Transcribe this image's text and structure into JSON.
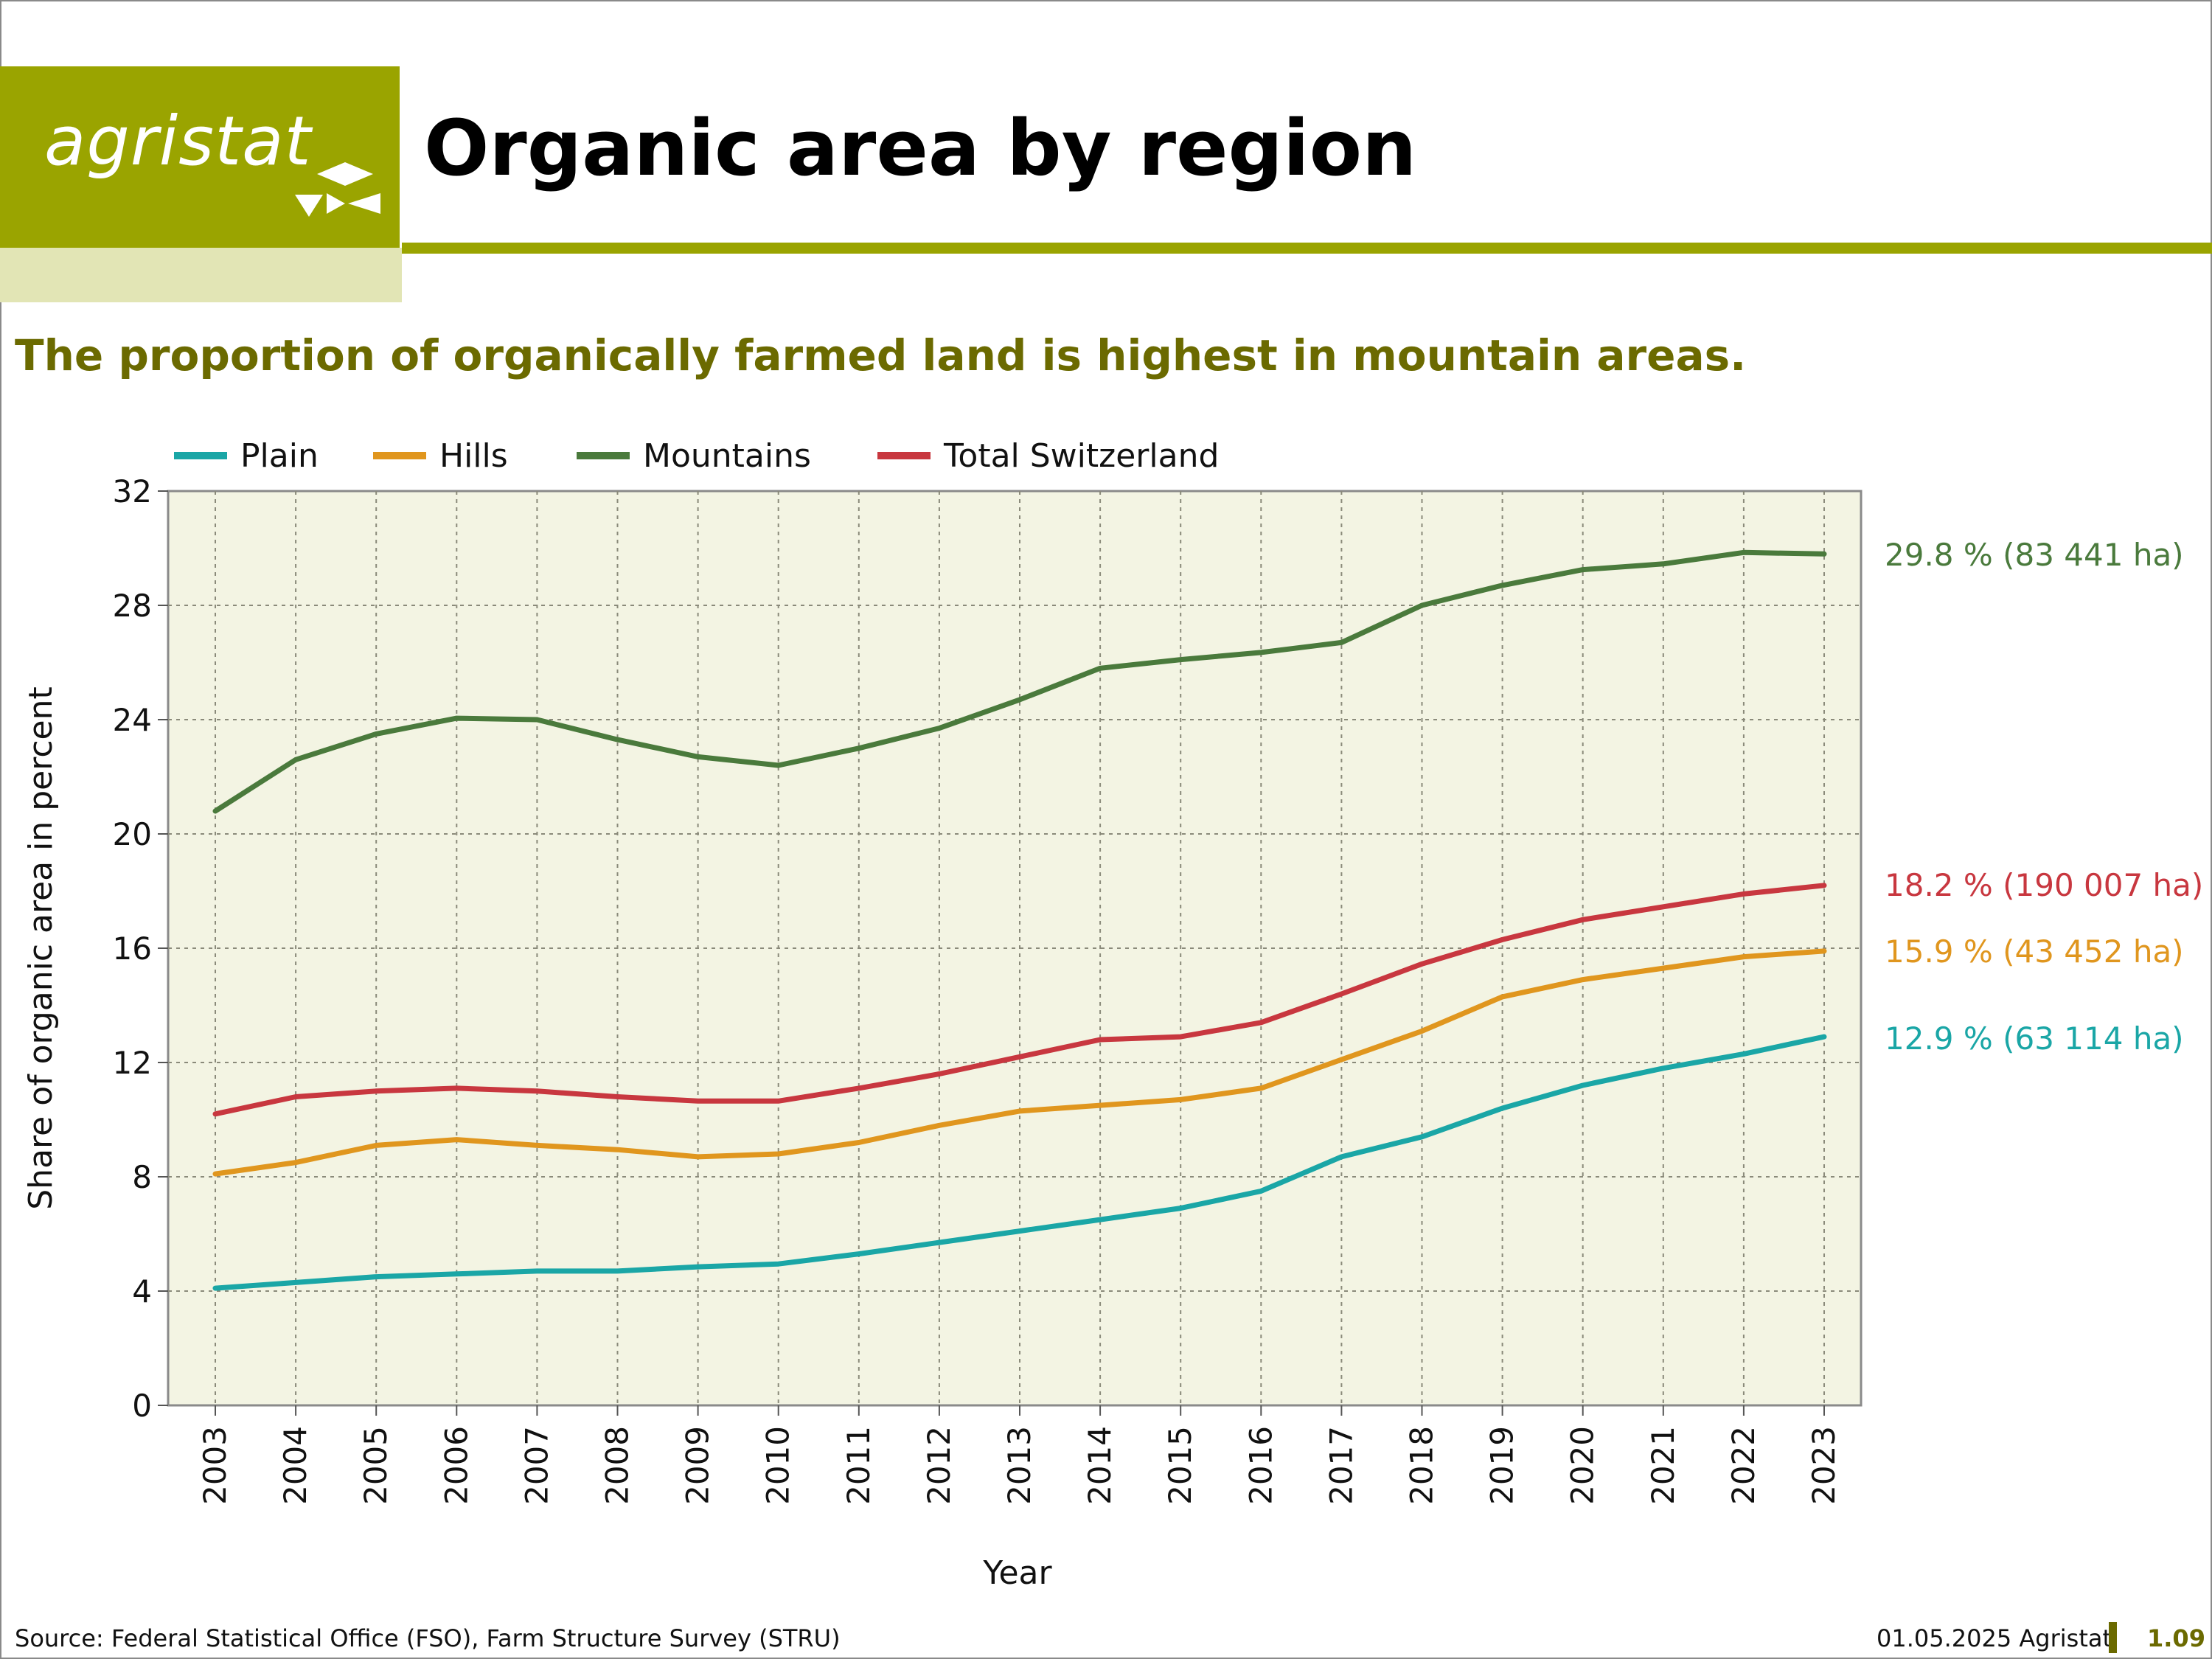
{
  "header": {
    "logo_text": "agristat",
    "title": "Organic area by region",
    "subtitle": "The proportion of organically farmed land is highest in mountain areas."
  },
  "chart_data": {
    "type": "line",
    "xlabel": "Year",
    "ylabel": "Share of organic area in percent",
    "ylim": [
      0,
      32
    ],
    "yticks": [
      0,
      4,
      8,
      12,
      16,
      20,
      24,
      28,
      32
    ],
    "grid": true,
    "legend_position": "top-left",
    "plot_background": "#f3f4e3",
    "x": [
      2003,
      2004,
      2005,
      2006,
      2007,
      2008,
      2009,
      2010,
      2011,
      2012,
      2013,
      2014,
      2015,
      2016,
      2017,
      2018,
      2019,
      2020,
      2021,
      2022,
      2023
    ],
    "series": [
      {
        "name": "Plain",
        "color": "#1aa6a6",
        "values": [
          4.1,
          4.3,
          4.5,
          4.6,
          4.7,
          4.7,
          4.85,
          4.95,
          5.3,
          5.7,
          6.1,
          6.5,
          6.9,
          7.5,
          8.7,
          9.4,
          10.4,
          11.2,
          11.8,
          12.3,
          12.9
        ],
        "end_label": "12.9 % (63 114 ha)"
      },
      {
        "name": "Hills",
        "color": "#e0961e",
        "values": [
          8.1,
          8.5,
          9.1,
          9.3,
          9.1,
          8.95,
          8.7,
          8.8,
          9.2,
          9.8,
          10.3,
          10.5,
          10.7,
          11.1,
          12.1,
          13.1,
          14.3,
          14.9,
          15.3,
          15.7,
          15.9
        ],
        "end_label": "15.9 % (43 452 ha)"
      },
      {
        "name": "Mountains",
        "color": "#4a7a3c",
        "values": [
          20.8,
          22.6,
          23.5,
          24.05,
          24.0,
          23.3,
          22.7,
          22.4,
          23.0,
          23.7,
          24.7,
          25.8,
          26.1,
          26.35,
          26.7,
          28.0,
          28.7,
          29.25,
          29.45,
          29.85,
          29.8
        ],
        "end_label": "29.8 % (83 441 ha)"
      },
      {
        "name": "Total Switzerland",
        "color": "#c8373f",
        "values": [
          10.2,
          10.8,
          11.0,
          11.1,
          11.0,
          10.8,
          10.65,
          10.65,
          11.1,
          11.6,
          12.2,
          12.8,
          12.9,
          13.4,
          14.4,
          15.45,
          16.3,
          17.0,
          17.45,
          17.9,
          18.2
        ],
        "end_label": "18.2 % (190 007 ha)"
      }
    ]
  },
  "footer": {
    "source": "Source: Federal Statistical Office (FSO), Farm Structure Survey (STRU)",
    "date": "01.05.2025 Agristat",
    "page": "1.09"
  }
}
